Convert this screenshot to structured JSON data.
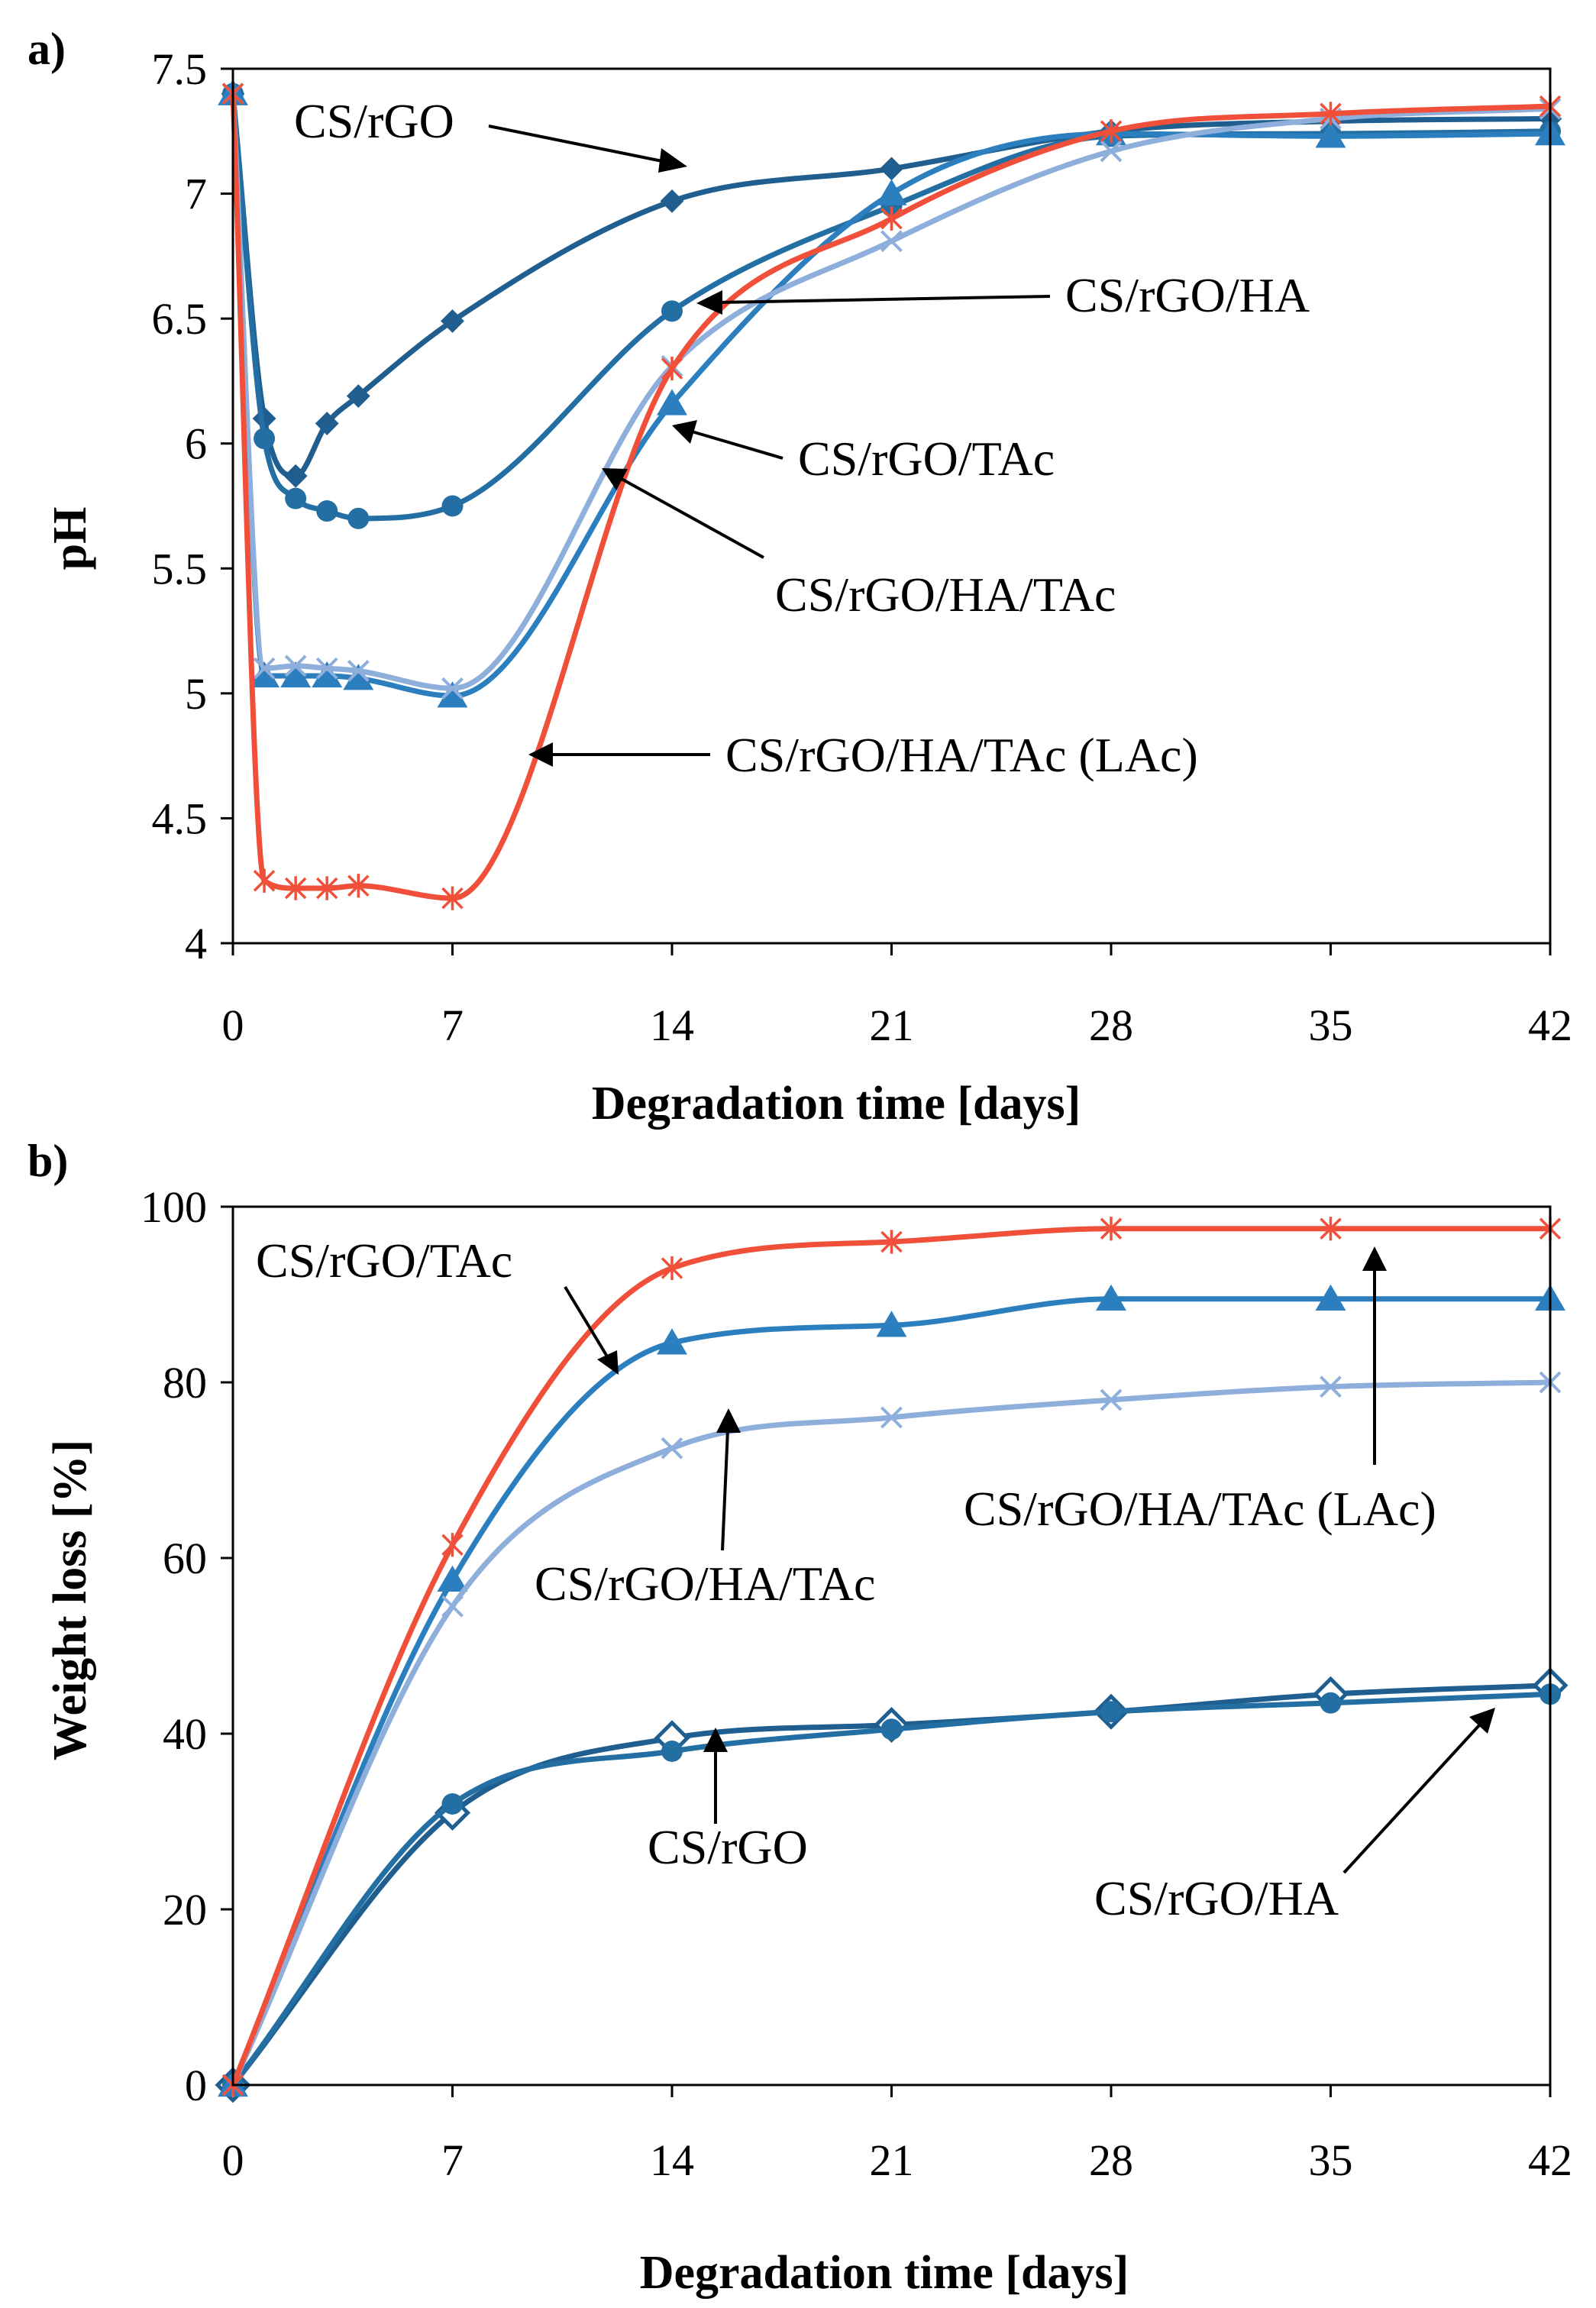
{
  "chart_data": [
    {
      "panel_label": "a)",
      "type": "line",
      "xlabel": "Degradation time [days]",
      "ylabel": "pH",
      "xlim": [
        0,
        42
      ],
      "ylim": [
        4,
        7.5
      ],
      "xticks": [
        0,
        7,
        14,
        21,
        28,
        35,
        42
      ],
      "xtick_labels": [
        "0",
        "7",
        "14",
        "21",
        "28",
        "35",
        "42"
      ],
      "yticks": [
        4,
        4.5,
        5,
        5.5,
        6,
        6.5,
        7,
        7.5
      ],
      "ytick_labels": [
        "4",
        "4.5",
        "5",
        "5.5",
        "6",
        "6.5",
        "7",
        "7.5"
      ],
      "grid": false,
      "series": [
        {
          "name": "CS/rGO",
          "color": "#1f5e8e",
          "marker": "diamond",
          "x": [
            0,
            1,
            2,
            3,
            4,
            7,
            14,
            21,
            28,
            35,
            42
          ],
          "y": [
            7.4,
            6.1,
            5.87,
            6.08,
            6.19,
            6.49,
            6.97,
            7.1,
            7.25,
            7.29,
            7.3
          ]
        },
        {
          "name": "CS/rGO/HA",
          "color": "#236fa3",
          "marker": "circle",
          "x": [
            0,
            1,
            2,
            3,
            4,
            7,
            14,
            21,
            28,
            35,
            42
          ],
          "y": [
            7.4,
            6.02,
            5.78,
            5.73,
            5.7,
            5.75,
            6.53,
            6.95,
            7.23,
            7.24,
            7.25
          ]
        },
        {
          "name": "CS/rGO/TAc",
          "color": "#2b7fbf",
          "marker": "triangle",
          "x": [
            0,
            1,
            2,
            3,
            4,
            7,
            14,
            21,
            28,
            35,
            42
          ],
          "y": [
            7.4,
            5.07,
            5.07,
            5.07,
            5.06,
            4.99,
            6.16,
            7.0,
            7.24,
            7.23,
            7.24
          ]
        },
        {
          "name": "CS/rGO/HA/TAc",
          "color": "#8eaedb",
          "marker": "x",
          "x": [
            0,
            1,
            2,
            3,
            4,
            7,
            14,
            21,
            28,
            35,
            42
          ],
          "y": [
            7.4,
            5.1,
            5.11,
            5.1,
            5.09,
            5.02,
            6.31,
            6.81,
            7.17,
            7.3,
            7.34
          ]
        },
        {
          "name": "CS/rGO/HA/TAc (LAc)",
          "color": "#f0503a",
          "marker": "star",
          "x": [
            0,
            1,
            2,
            3,
            4,
            7,
            14,
            21,
            28,
            35,
            42
          ],
          "y": [
            7.4,
            4.25,
            4.22,
            4.22,
            4.23,
            4.18,
            6.3,
            6.9,
            7.25,
            7.32,
            7.35
          ]
        }
      ],
      "annotations": [
        "CS/rGO",
        "CS/rGO/HA",
        "CS/rGO/TAc",
        "CS/rGO/HA/TAc",
        "CS/rGO/HA/TAc (LAc)"
      ]
    },
    {
      "panel_label": "b)",
      "type": "line",
      "xlabel": "Degradation time [days]",
      "ylabel": "Weight loss [%]",
      "xlim": [
        0,
        42
      ],
      "ylim": [
        0,
        100
      ],
      "xticks": [
        0,
        7,
        14,
        21,
        28,
        35,
        42
      ],
      "xtick_labels": [
        "0",
        "7",
        "14",
        "21",
        "28",
        "35",
        "42"
      ],
      "yticks": [
        0,
        20,
        40,
        60,
        80,
        100
      ],
      "ytick_labels": [
        "0",
        "20",
        "40",
        "60",
        "80",
        "100"
      ],
      "grid": false,
      "series": [
        {
          "name": "CS/rGO",
          "color": "#1f5e8e",
          "marker": "diamond-open",
          "x": [
            0,
            7,
            14,
            21,
            28,
            35,
            42
          ],
          "y": [
            0,
            31,
            39.5,
            41,
            42.5,
            44.5,
            45.5
          ]
        },
        {
          "name": "CS/rGO/HA",
          "color": "#236fa3",
          "marker": "circle",
          "x": [
            0,
            7,
            14,
            21,
            28,
            35,
            42
          ],
          "y": [
            0,
            32,
            38,
            40.5,
            42.5,
            43.5,
            44.5
          ]
        },
        {
          "name": "CS/rGO/TAc",
          "color": "#2b7fbf",
          "marker": "triangle",
          "x": [
            0,
            7,
            14,
            21,
            28,
            35,
            42
          ],
          "y": [
            0,
            57.5,
            84.5,
            86.5,
            89.5,
            89.5,
            89.5
          ]
        },
        {
          "name": "CS/rGO/HA/TAc",
          "color": "#8eaedb",
          "marker": "x",
          "x": [
            0,
            7,
            14,
            21,
            28,
            35,
            42
          ],
          "y": [
            0,
            54.5,
            72.5,
            76,
            78,
            79.5,
            80
          ]
        },
        {
          "name": "CS/rGO/HA/TAc (LAc)",
          "color": "#f0503a",
          "marker": "star",
          "x": [
            0,
            7,
            14,
            21,
            28,
            35,
            42
          ],
          "y": [
            0,
            61.5,
            93,
            96,
            97.5,
            97.5,
            97.5
          ]
        }
      ],
      "annotations": [
        "CS/rGO/TAc",
        "CS/rGO/HA/TAc (LAc)",
        "CS/rGO/HA/TAc",
        "CS/rGO",
        "CS/rGO/HA"
      ]
    }
  ]
}
